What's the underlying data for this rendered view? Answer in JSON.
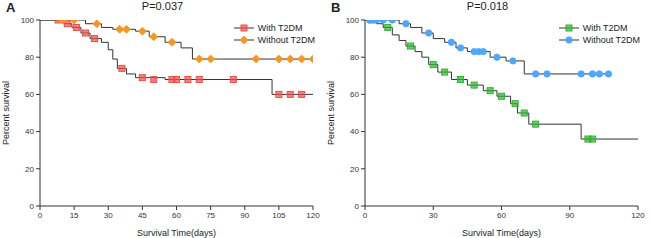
{
  "chart_data": [
    {
      "type": "line",
      "title": "P=0.037",
      "annotations": [
        "A"
      ],
      "xlabel": "Survival Time(days)",
      "ylabel": "Percent survival",
      "line_style": "step",
      "legend": "upper right",
      "grid": false,
      "xlim": [
        0,
        120
      ],
      "xticks": [
        0,
        15,
        30,
        45,
        60,
        75,
        90,
        105,
        120
      ],
      "ylim": [
        0,
        100
      ],
      "yticks": [
        0,
        20,
        40,
        60,
        80,
        100
      ],
      "series": [
        {
          "name": "With T2DM",
          "color": "#ef4f46",
          "marker": "square",
          "x": [
            0,
            10,
            14,
            18,
            22,
            27,
            30,
            32,
            34,
            38,
            42,
            55,
            102,
            120
          ],
          "values": [
            100,
            98,
            96,
            93,
            90,
            88,
            84,
            79,
            74,
            71,
            69,
            68,
            60,
            60
          ],
          "censor_x": [
            8,
            12,
            16,
            20,
            24,
            36,
            45,
            50,
            58,
            60,
            65,
            70,
            85,
            105,
            110,
            115
          ],
          "censor_values": [
            100,
            98,
            96,
            93,
            90,
            74,
            69,
            68,
            68,
            68,
            68,
            68,
            68,
            60,
            60,
            60
          ]
        },
        {
          "name": "Without T2DM",
          "color": "#f7961e",
          "marker": "diamond",
          "x": [
            0,
            20,
            27,
            32,
            42,
            48,
            55,
            62,
            67,
            120
          ],
          "values": [
            100,
            98,
            96,
            95,
            94,
            91,
            88,
            85,
            79,
            79
          ],
          "censor_x": [
            10,
            15,
            25,
            35,
            38,
            45,
            50,
            58,
            70,
            75,
            95,
            105,
            110,
            115,
            120
          ],
          "censor_values": [
            100,
            100,
            98,
            95,
            95,
            94,
            91,
            88,
            79,
            79,
            79,
            79,
            79,
            79,
            79
          ]
        }
      ]
    },
    {
      "type": "line",
      "title": "P=0.018",
      "annotations": [
        "B"
      ],
      "xlabel": "Survival Time(days)",
      "ylabel": "Percent survival",
      "line_style": "step",
      "legend": "upper right",
      "grid": false,
      "xlim": [
        0,
        120
      ],
      "xticks": [
        0,
        30,
        60,
        90,
        120
      ],
      "ylim": [
        0,
        100
      ],
      "yticks": [
        0,
        20,
        40,
        60,
        80,
        100
      ],
      "series": [
        {
          "name": "With T2DM",
          "color": "#2fb52f",
          "marker": "square",
          "x": [
            0,
            5,
            8,
            12,
            15,
            18,
            22,
            25,
            28,
            32,
            38,
            45,
            52,
            58,
            64,
            67,
            72,
            95,
            120
          ],
          "values": [
            100,
            98,
            96,
            92,
            89,
            86,
            83,
            80,
            76,
            72,
            68,
            65,
            62,
            59,
            55,
            50,
            44,
            36,
            36
          ],
          "censor_x": [
            3,
            10,
            20,
            30,
            35,
            42,
            48,
            55,
            60,
            66,
            70,
            75,
            98,
            100
          ],
          "censor_values": [
            100,
            96,
            86,
            76,
            72,
            68,
            65,
            62,
            59,
            55,
            50,
            44,
            36,
            36
          ]
        },
        {
          "name": "Without T2DM",
          "color": "#4da6ff",
          "marker": "circle",
          "x": [
            0,
            15,
            20,
            25,
            30,
            35,
            40,
            45,
            55,
            62,
            70,
            107
          ],
          "values": [
            100,
            98,
            96,
            93,
            90,
            88,
            85,
            83,
            80,
            78,
            71,
            71
          ],
          "censor_x": [
            2,
            5,
            8,
            12,
            18,
            28,
            38,
            42,
            48,
            50,
            52,
            58,
            65,
            75,
            80,
            95,
            100,
            103,
            107
          ],
          "censor_values": [
            100,
            100,
            100,
            100,
            98,
            93,
            88,
            85,
            83,
            83,
            83,
            80,
            78,
            71,
            71,
            71,
            71,
            71,
            71
          ]
        }
      ]
    }
  ]
}
